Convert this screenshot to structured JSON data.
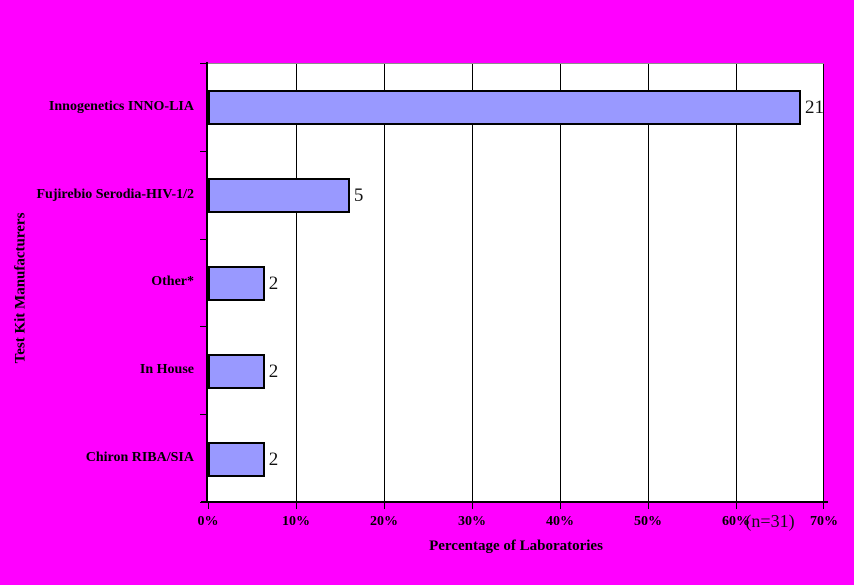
{
  "page": {
    "background_color": "#FF00FF"
  },
  "chart_data": {
    "type": "bar",
    "orientation": "horizontal",
    "title": "",
    "xlabel": "Percentage of Laboratories",
    "ylabel": "Test Kit Manufacturers",
    "categories": [
      "Innogenetics INNO-LIA",
      "Fujirebio Serodia-HIV-1/2",
      "Other*",
      "In House",
      "Chiron RIBA/SIA"
    ],
    "values": [
      21,
      5,
      2,
      2,
      2
    ],
    "percent_of_laboratories": [
      67.7,
      16.1,
      6.5,
      6.5,
      6.5
    ],
    "n": 31,
    "sample_size_label": "(n=31)",
    "x_ticks": [
      "0%",
      "10%",
      "20%",
      "30%",
      "40%",
      "50%",
      "60%",
      "70%"
    ],
    "xlim": [
      0,
      70
    ],
    "grid": true,
    "legend": false,
    "colors": {
      "background": "#FF00FF",
      "plot_background": "#FFFFFF",
      "bar_fill": "#9999FF",
      "bar_border": "#000000",
      "gridline": "#000000",
      "text": "#000000"
    }
  }
}
